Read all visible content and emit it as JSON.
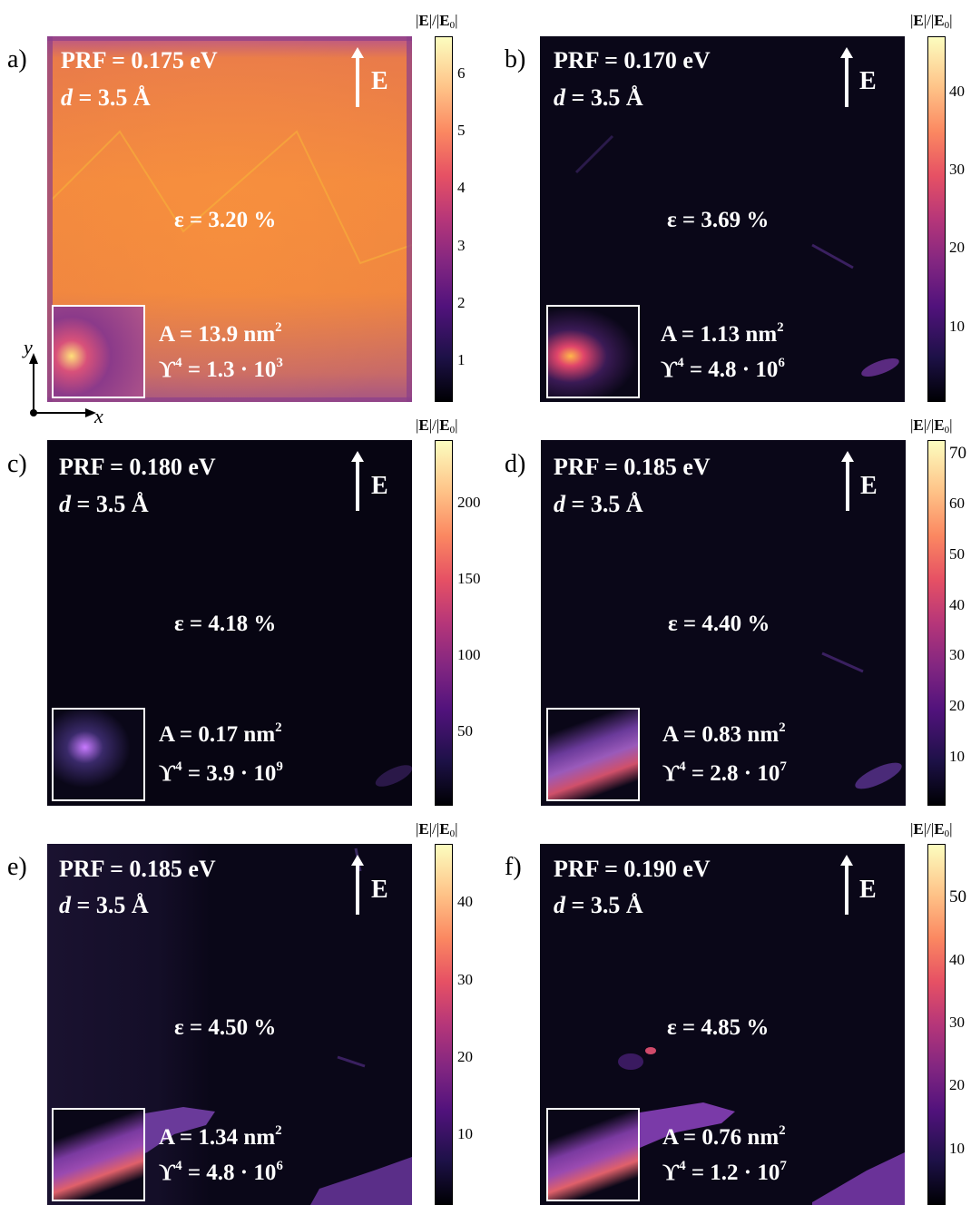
{
  "colorbar_label": "|E|/|E0|",
  "axis_labels": {
    "x": "x",
    "y": "y"
  },
  "field_arrow_label": "E",
  "panels": [
    {
      "letter": "a)",
      "prf": "PRF = 0.175 eV",
      "d": "d = 3.5 Å",
      "strain": "ε = 3.20 %",
      "area": "A = 13.9 nm",
      "area_exp": "2",
      "upsilon": "ϒ",
      "upsilon_exp": "4",
      "upsilon_val": " = 1.3 · 10",
      "upsilon_val_exp": "3",
      "cbar_ticks": [
        "6",
        "5",
        "4",
        "3",
        "2",
        "1"
      ]
    },
    {
      "letter": "b)",
      "prf": "PRF = 0.170 eV",
      "d": "d = 3.5 Å",
      "strain": "ε = 3.69 %",
      "area": "A = 1.13 nm",
      "area_exp": "2",
      "upsilon": "ϒ",
      "upsilon_exp": "4",
      "upsilon_val": " = 4.8 · 10",
      "upsilon_val_exp": "6",
      "cbar_ticks": [
        "40",
        "30",
        "20",
        "10"
      ]
    },
    {
      "letter": "c)",
      "prf": "PRF = 0.180 eV",
      "d": "d = 3.5 Å",
      "strain": "ε = 4.18 %",
      "area": "A = 0.17 nm",
      "area_exp": "2",
      "upsilon": "ϒ",
      "upsilon_exp": "4",
      "upsilon_val": " = 3.9 · 10",
      "upsilon_val_exp": "9",
      "cbar_ticks": [
        "200",
        "150",
        "100",
        "50"
      ]
    },
    {
      "letter": "d)",
      "prf": "PRF = 0.185 eV",
      "d": "d = 3.5 Å",
      "strain": "ε = 4.40 %",
      "area": "A = 0.83 nm",
      "area_exp": "2",
      "upsilon": "ϒ",
      "upsilon_exp": "4",
      "upsilon_val": " = 2.8 · 10",
      "upsilon_val_exp": "7",
      "cbar_ticks": [
        "70",
        "60",
        "50",
        "40",
        "30",
        "20",
        "10"
      ]
    },
    {
      "letter": "e)",
      "prf": "PRF = 0.185 eV",
      "d": "d = 3.5 Å",
      "strain": "ε = 4.50 %",
      "area": "A = 1.34 nm",
      "area_exp": "2",
      "upsilon": "ϒ",
      "upsilon_exp": "4",
      "upsilon_val": " = 4.8 · 10",
      "upsilon_val_exp": "6",
      "cbar_ticks": [
        "40",
        "30",
        "20",
        "10"
      ]
    },
    {
      "letter": "f)",
      "prf": "PRF = 0.190 eV",
      "d": "d = 3.5 Å",
      "strain": "ε = 4.85 %",
      "area": "A = 0.76 nm",
      "area_exp": "2",
      "upsilon": "ϒ",
      "upsilon_exp": "4",
      "upsilon_val": " = 1.2 · 10",
      "upsilon_val_exp": "7",
      "cbar_ticks": [
        "50",
        "40",
        "30",
        "20",
        "10"
      ]
    }
  ],
  "chart_data": [
    {
      "type": "heatmap",
      "title": "a)",
      "colorbar": {
        "label": "|E|/|E0|",
        "ticks": [
          1,
          2,
          3,
          4,
          5,
          6
        ],
        "range": [
          0.3,
          6.6
        ]
      }
    },
    {
      "type": "heatmap",
      "title": "b)",
      "colorbar": {
        "label": "|E|/|E0|",
        "ticks": [
          10,
          20,
          30,
          40
        ],
        "range": [
          0.5,
          47
        ]
      }
    },
    {
      "type": "heatmap",
      "title": "c)",
      "colorbar": {
        "label": "|E|/|E0|",
        "ticks": [
          50,
          100,
          150,
          200
        ],
        "range": [
          1,
          240
        ]
      }
    },
    {
      "type": "heatmap",
      "title": "d)",
      "colorbar": {
        "label": "|E|/|E0|",
        "ticks": [
          10,
          20,
          30,
          40,
          50,
          60,
          70
        ],
        "range": [
          0.5,
          73
        ]
      }
    },
    {
      "type": "heatmap",
      "title": "e)",
      "colorbar": {
        "label": "|E|/|E0|",
        "ticks": [
          10,
          20,
          30,
          40
        ],
        "range": [
          0.5,
          47
        ]
      }
    },
    {
      "type": "heatmap",
      "title": "f)",
      "colorbar": {
        "label": "|E|/|E0|",
        "ticks": [
          10,
          20,
          30,
          40,
          50
        ],
        "range": [
          0.5,
          58
        ]
      }
    }
  ]
}
